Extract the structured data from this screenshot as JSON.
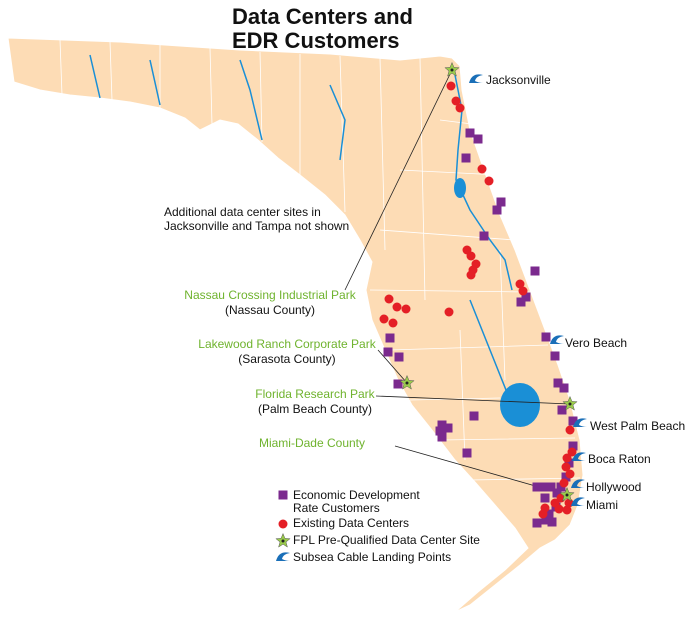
{
  "header": {
    "title_lines": [
      "Data Centers and",
      "EDR Customers"
    ]
  },
  "note": {
    "lines": [
      "Additional data center sites in",
      "Jacksonville and Tampa not shown"
    ]
  },
  "sites": [
    {
      "name": "Nassau Crossing Industrial Park",
      "county": "(Nassau County)"
    },
    {
      "name": "Lakewood Ranch Corporate Park",
      "county": "(Sarasota County)"
    },
    {
      "name": "Florida Research Park",
      "county": "(Palm Beach County)"
    },
    {
      "name": "Miami-Dade County"
    }
  ],
  "cities": [
    "Jacksonville",
    "Vero Beach",
    "West Palm Beach",
    "Boca Raton",
    "Hollywood",
    "Miami"
  ],
  "legend": {
    "edr_lines": [
      "Economic Development",
      "Rate Customers"
    ],
    "data_centers": "Existing Data Centers",
    "site": "FPL Pre-Qualified Data Center Site",
    "cable": "Subsea Cable Landing Points"
  }
}
